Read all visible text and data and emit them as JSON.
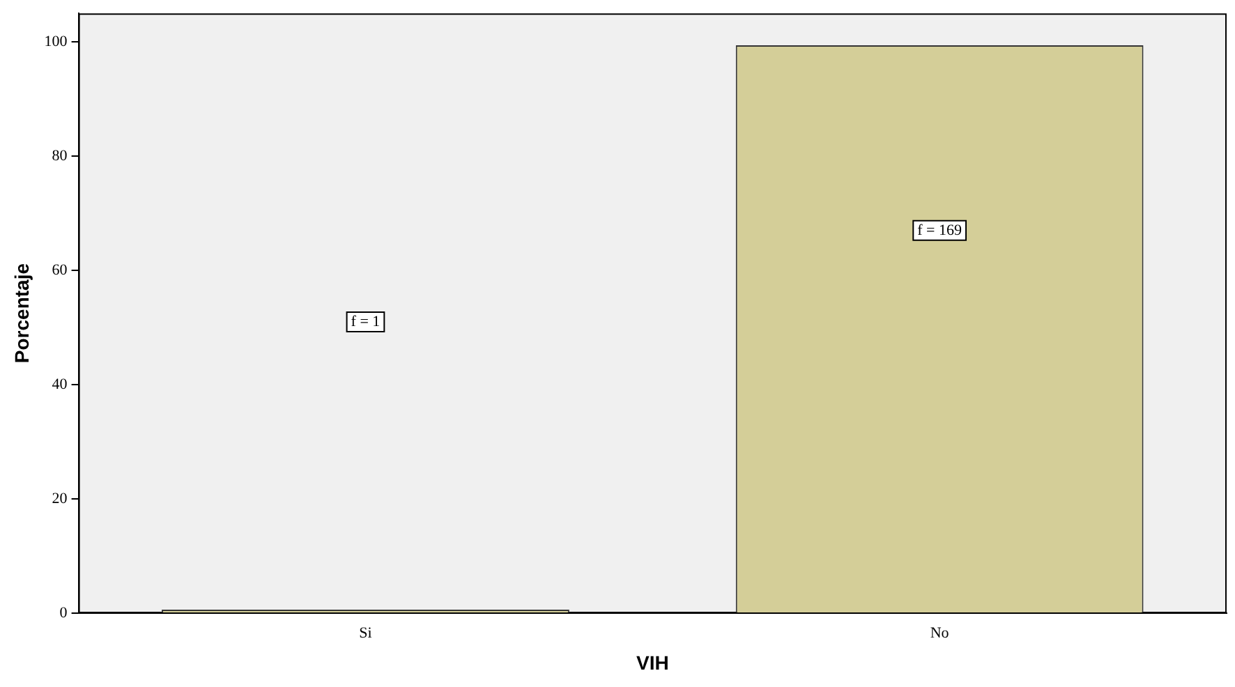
{
  "chart_data": {
    "type": "bar",
    "xlabel": "VIH",
    "ylabel": "Porcentaje",
    "categories": [
      "Si",
      "No"
    ],
    "values": [
      0.6,
      99.4
    ],
    "color": "#d4ce98",
    "ylim": [
      0,
      105
    ],
    "yticks": [
      0,
      20,
      40,
      60,
      80,
      100
    ],
    "grid": false,
    "legend": false,
    "annotations": [
      {
        "text": "f = 1",
        "x": "Si",
        "y": 51
      },
      {
        "text": "f = 169",
        "x": "No",
        "y": 67
      }
    ]
  }
}
